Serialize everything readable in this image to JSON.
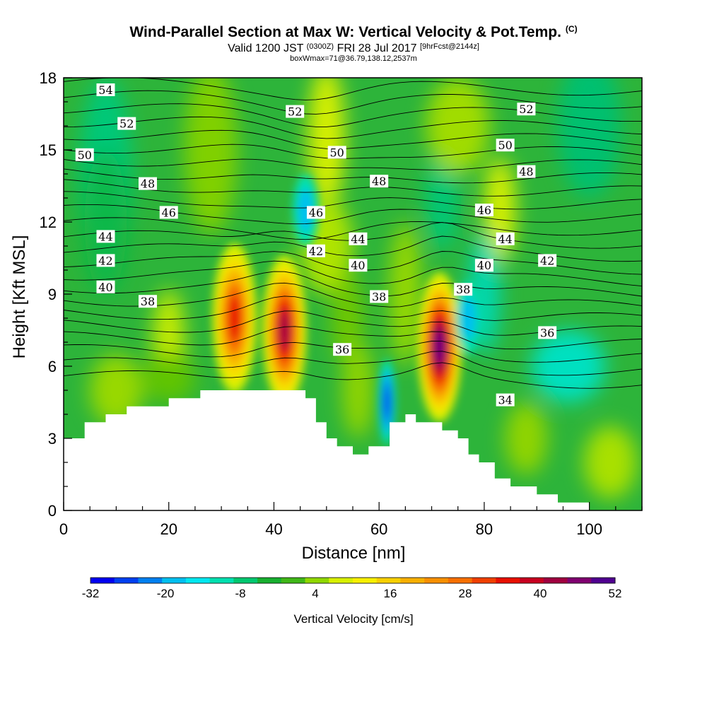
{
  "header": {
    "title": "Wind-Parallel Section at Max W: Vertical Velocity & Pot.Temp.",
    "copyright": "(C)",
    "valid_prefix": "Valid 1200 JST",
    "valid_utc": "(0300Z)",
    "valid_date": "FRI 28 Jul 2017",
    "forecast": "[9hrFcst@2144z]",
    "box_info": "boxWmax=71@36.79,138.12,2537m"
  },
  "chart_data": {
    "type": "heatmap",
    "title": "Wind-Parallel Section at Max W: Vertical Velocity & Pot.Temp.",
    "xlabel": "Distance [nm]",
    "ylabel": "Height [Kft MSL]",
    "xlim": [
      0,
      110
    ],
    "ylim": [
      0,
      18
    ],
    "x_ticks": [
      "0",
      "20",
      "40",
      "60",
      "80",
      "100"
    ],
    "y_ticks": [
      "0",
      "3",
      "6",
      "9",
      "12",
      "15",
      "18"
    ],
    "colorbar": {
      "label": "Vertical Velocity [cm/s]",
      "ticks": [
        "-32",
        "-20",
        "-8",
        "4",
        "16",
        "28",
        "40",
        "52"
      ],
      "colors": [
        "#0000f0",
        "#0040f0",
        "#0080f0",
        "#00c0f0",
        "#00e8f0",
        "#00e0b0",
        "#00c870",
        "#18b030",
        "#40b818",
        "#90d800",
        "#d8f000",
        "#f8f000",
        "#f8d000",
        "#f8b000",
        "#f89000",
        "#f87000",
        "#f04000",
        "#e81000",
        "#c80020",
        "#a00040",
        "#800070",
        "#500090"
      ]
    },
    "updraft_cores": [
      {
        "x": 32.5,
        "y": 8.0,
        "value": 40
      },
      {
        "x": 42.0,
        "y": 7.5,
        "value": 44
      },
      {
        "x": 71.5,
        "y": 6.8,
        "value": 52
      }
    ],
    "downdraft_cores": [
      {
        "x": 61.5,
        "y": 4.5,
        "value": -32
      },
      {
        "x": 46.0,
        "y": 12.5,
        "value": -14
      },
      {
        "x": 77.0,
        "y": 8.0,
        "value": -10
      }
    ],
    "terrain": {
      "x": [
        0,
        4,
        4,
        8,
        8,
        12,
        12,
        20,
        20,
        26,
        26,
        46,
        46,
        48,
        48,
        50,
        50,
        52,
        52,
        55,
        55,
        58,
        58,
        62,
        62,
        65,
        65,
        67,
        67,
        72,
        72,
        75,
        75,
        77,
        77,
        79,
        79,
        82,
        82,
        85,
        85,
        90,
        90,
        94,
        94,
        100,
        100,
        110
      ],
      "y": [
        3,
        3,
        3.67,
        3.67,
        4,
        4,
        4.33,
        4.33,
        4.67,
        4.67,
        5,
        5,
        4.67,
        4.67,
        3.67,
        3.67,
        3,
        3,
        2.67,
        2.67,
        2.33,
        2.33,
        2.67,
        2.67,
        3.67,
        3.67,
        4,
        4,
        3.67,
        3.67,
        3.33,
        3.33,
        3,
        3,
        2.33,
        2.33,
        2,
        2,
        1.33,
        1.33,
        1,
        1,
        0.67,
        0.67,
        0.33,
        0.33,
        0,
        0
      ]
    },
    "theta_contour_labels": [
      {
        "text": "54",
        "x": 8.0,
        "y": 17.5
      },
      {
        "text": "52",
        "x": 12.0,
        "y": 16.1
      },
      {
        "text": "50",
        "x": 4.0,
        "y": 14.8
      },
      {
        "text": "48",
        "x": 16.0,
        "y": 13.6
      },
      {
        "text": "46",
        "x": 20.0,
        "y": 12.4
      },
      {
        "text": "44",
        "x": 8.0,
        "y": 11.4
      },
      {
        "text": "42",
        "x": 8.0,
        "y": 10.4
      },
      {
        "text": "40",
        "x": 8.0,
        "y": 9.3
      },
      {
        "text": "38",
        "x": 16.0,
        "y": 8.7
      },
      {
        "text": "52",
        "x": 44.0,
        "y": 16.6
      },
      {
        "text": "50",
        "x": 52.0,
        "y": 14.9
      },
      {
        "text": "48",
        "x": 60.0,
        "y": 13.7
      },
      {
        "text": "46",
        "x": 48.0,
        "y": 12.4
      },
      {
        "text": "44",
        "x": 56.0,
        "y": 11.3
      },
      {
        "text": "42",
        "x": 48.0,
        "y": 10.8
      },
      {
        "text": "40",
        "x": 56.0,
        "y": 10.2
      },
      {
        "text": "38",
        "x": 60.0,
        "y": 8.9
      },
      {
        "text": "36",
        "x": 53.0,
        "y": 6.7
      },
      {
        "text": "52",
        "x": 88.0,
        "y": 16.7
      },
      {
        "text": "50",
        "x": 84.0,
        "y": 15.2
      },
      {
        "text": "48",
        "x": 88.0,
        "y": 14.1
      },
      {
        "text": "46",
        "x": 80.0,
        "y": 12.5
      },
      {
        "text": "44",
        "x": 84.0,
        "y": 11.3
      },
      {
        "text": "42",
        "x": 92.0,
        "y": 10.4
      },
      {
        "text": "40",
        "x": 80.0,
        "y": 10.2
      },
      {
        "text": "38",
        "x": 76.0,
        "y": 9.2
      },
      {
        "text": "36",
        "x": 92.0,
        "y": 7.4
      },
      {
        "text": "34",
        "x": 84.0,
        "y": 4.6
      }
    ]
  }
}
